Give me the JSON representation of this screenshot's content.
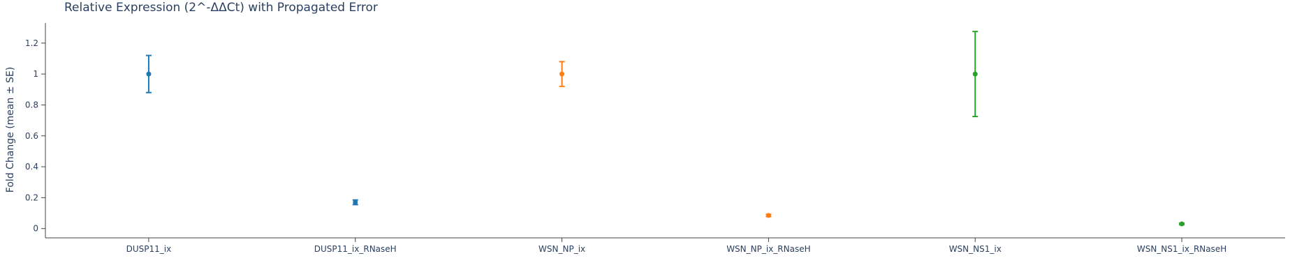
{
  "chart_data": {
    "type": "scatter",
    "title": "Relative Expression (2^-ΔΔCt) with Propagated Error",
    "ylabel": "Fold Change (mean ± SE)",
    "xlabel": "",
    "categories": [
      "DUSP11_ix",
      "DUSP11_ix_RNaseH",
      "WSN_NP_ix",
      "WSN_NP_ix_RNaseH",
      "WSN_NS1_ix",
      "WSN_NS1_ix_RNaseH"
    ],
    "ylim": [
      -0.06,
      1.33
    ],
    "yticks": [
      0,
      0.2,
      0.4,
      0.6,
      0.8,
      1,
      1.2
    ],
    "yticklabels": [
      "0",
      "0.2",
      "0.4",
      "0.6",
      "0.8",
      "1",
      "1.2"
    ],
    "grid": false,
    "points": [
      {
        "category": "DUSP11_ix",
        "mean": 1.0,
        "se": 0.12,
        "color": "#1f77b4"
      },
      {
        "category": "DUSP11_ix_RNaseH",
        "mean": 0.17,
        "se": 0.015,
        "color": "#1f77b4"
      },
      {
        "category": "WSN_NP_ix",
        "mean": 1.0,
        "se": 0.08,
        "color": "#ff7f0e"
      },
      {
        "category": "WSN_NP_ix_RNaseH",
        "mean": 0.085,
        "se": 0.007,
        "color": "#ff7f0e"
      },
      {
        "category": "WSN_NS1_ix",
        "mean": 1.0,
        "se": 0.275,
        "color": "#2ca02c"
      },
      {
        "category": "WSN_NS1_ix_RNaseH",
        "mean": 0.03,
        "se": 0.005,
        "color": "#2ca02c"
      }
    ]
  }
}
